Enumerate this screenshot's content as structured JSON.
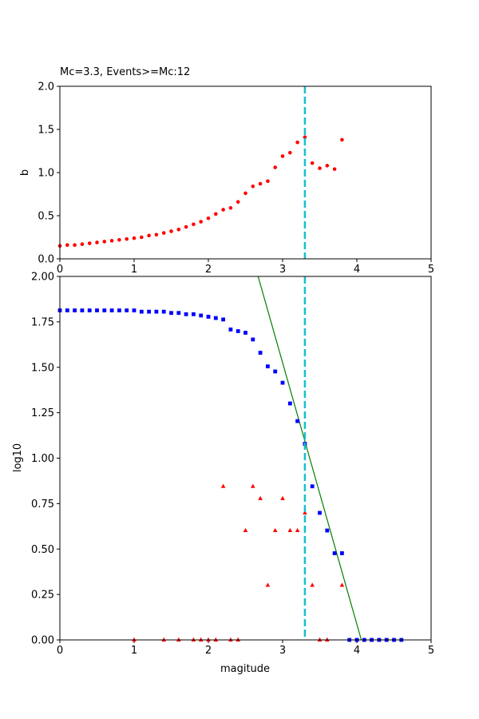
{
  "chart_data": [
    {
      "type": "scatter",
      "title": "Mc=3.3, Events>=Mc:12",
      "xlabel": "",
      "ylabel": "b",
      "xlim": [
        0,
        5
      ],
      "ylim": [
        0,
        2
      ],
      "xticks": [
        "0",
        "1",
        "2",
        "3",
        "4",
        "5"
      ],
      "yticks": [
        "0.0",
        "0.5",
        "1.0",
        "1.5",
        "2.0"
      ],
      "grid": false,
      "colors": {
        "points": "#ff0000",
        "mc_line": "#17becf"
      },
      "mc_line_x": 3.3,
      "series": [
        {
          "marker": "circle",
          "x": [
            0.0,
            0.1,
            0.2,
            0.3,
            0.4,
            0.5,
            0.6,
            0.7,
            0.8,
            0.9,
            1.0,
            1.1,
            1.2,
            1.3,
            1.4,
            1.5,
            1.6,
            1.7,
            1.8,
            1.9,
            2.0,
            2.1,
            2.2,
            2.3,
            2.4,
            2.5,
            2.6,
            2.7,
            2.8,
            2.9,
            3.0,
            3.1,
            3.2,
            3.3,
            3.4,
            3.5,
            3.6,
            3.7,
            3.8
          ],
          "y": [
            0.15,
            0.16,
            0.16,
            0.17,
            0.18,
            0.19,
            0.2,
            0.21,
            0.22,
            0.23,
            0.24,
            0.25,
            0.27,
            0.28,
            0.3,
            0.32,
            0.34,
            0.37,
            0.4,
            0.43,
            0.47,
            0.52,
            0.57,
            0.59,
            0.66,
            0.76,
            0.84,
            0.87,
            0.9,
            1.06,
            1.19,
            1.23,
            1.35,
            1.41,
            1.11,
            1.05,
            1.08,
            1.04,
            1.38
          ]
        }
      ]
    },
    {
      "type": "scatter",
      "title": "",
      "xlabel": "magitude",
      "ylabel": "log10",
      "xlim": [
        0,
        5
      ],
      "ylim": [
        0,
        2
      ],
      "xticks": [
        "0",
        "1",
        "2",
        "3",
        "4",
        "5"
      ],
      "yticks": [
        "0.00",
        "0.25",
        "0.50",
        "0.75",
        "1.00",
        "1.25",
        "1.50",
        "1.75",
        "2.00"
      ],
      "grid": false,
      "colors": {
        "cumulative": "#0000ff",
        "noncumulative": "#ff0000",
        "fit": "#008000",
        "mc_line": "#17becf"
      },
      "mc_line_x": 3.3,
      "fit_line": {
        "x": [
          2.67,
          4.06
        ],
        "y": [
          2.0,
          0.0
        ]
      },
      "series": [
        {
          "marker": "square",
          "x": [
            0.0,
            0.1,
            0.2,
            0.3,
            0.4,
            0.5,
            0.6,
            0.7,
            0.8,
            0.9,
            1.0,
            1.1,
            1.2,
            1.3,
            1.4,
            1.5,
            1.6,
            1.7,
            1.8,
            1.9,
            2.0,
            2.1,
            2.2,
            2.3,
            2.4,
            2.5,
            2.6,
            2.7,
            2.8,
            2.9,
            3.0,
            3.1,
            3.2,
            3.3,
            3.4,
            3.5,
            3.6,
            3.7,
            3.8,
            3.9,
            4.0,
            4.1,
            4.2,
            4.3,
            4.4,
            4.5,
            4.6
          ],
          "y": [
            1.813,
            1.813,
            1.813,
            1.813,
            1.813,
            1.813,
            1.813,
            1.813,
            1.813,
            1.813,
            1.813,
            1.806,
            1.806,
            1.806,
            1.806,
            1.799,
            1.799,
            1.792,
            1.792,
            1.785,
            1.778,
            1.771,
            1.763,
            1.708,
            1.699,
            1.69,
            1.653,
            1.58,
            1.505,
            1.477,
            1.415,
            1.301,
            1.204,
            1.079,
            0.845,
            0.699,
            0.602,
            0.477,
            0.477,
            0.0,
            0.0,
            0.0,
            0.0,
            0.0,
            0.0,
            0.0,
            0.0
          ]
        },
        {
          "marker": "triangle",
          "x": [
            1.0,
            1.4,
            1.6,
            1.8,
            1.9,
            2.0,
            2.1,
            2.2,
            2.3,
            2.4,
            2.5,
            2.6,
            2.7,
            2.8,
            2.9,
            3.0,
            3.1,
            3.2,
            3.3,
            3.4,
            3.5,
            3.6,
            3.8
          ],
          "y": [
            0.0,
            0.0,
            0.0,
            0.0,
            0.0,
            0.0,
            0.0,
            0.845,
            0.0,
            0.0,
            0.602,
            0.845,
            0.778,
            0.301,
            0.602,
            0.778,
            0.602,
            0.602,
            0.699,
            0.301,
            0.0,
            0.0,
            0.301
          ]
        }
      ]
    }
  ]
}
